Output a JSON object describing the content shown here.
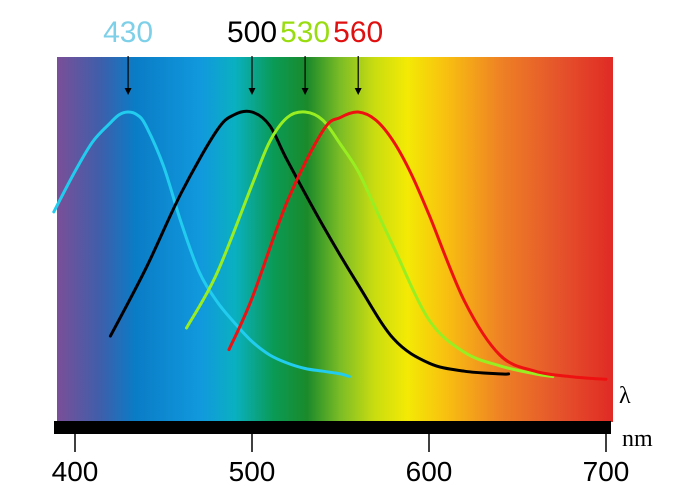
{
  "chart_data": {
    "type": "line",
    "title": "",
    "xlabel": "λ",
    "x_unit": "nm",
    "ylabel": "",
    "xlim": [
      393,
      710
    ],
    "ylim": [
      0,
      1
    ],
    "x_ticks": [
      400,
      500,
      600,
      700
    ],
    "x_tick_labels": [
      "400",
      "500",
      "600",
      "700"
    ],
    "background": "visible spectrum gradient (violet to red)",
    "grid": false,
    "legend": "none",
    "peak_labels": [
      {
        "text": "430",
        "value": 430,
        "color": "#7ed0e8"
      },
      {
        "text": "500",
        "value": 500,
        "color": "#000000"
      },
      {
        "text": "530",
        "value": 530,
        "color": "#99dd11"
      },
      {
        "text": "560",
        "value": 560,
        "color": "#e01010"
      }
    ],
    "series": [
      {
        "peak": 430,
        "color": "#22ccee",
        "x": [
          388,
          400,
          410,
          420,
          425,
          430,
          435,
          440,
          450,
          460,
          470,
          480,
          490,
          500,
          510,
          520,
          530,
          540,
          550,
          555
        ],
        "y": [
          0.63,
          0.78,
          0.89,
          0.96,
          0.99,
          1.0,
          0.99,
          0.95,
          0.8,
          0.59,
          0.41,
          0.3,
          0.22,
          0.15,
          0.1,
          0.07,
          0.05,
          0.04,
          0.03,
          0.02
        ]
      },
      {
        "peak": 500,
        "color": "#000000",
        "x": [
          420,
          440,
          460,
          480,
          490,
          500,
          510,
          520,
          540,
          560,
          580,
          600,
          620,
          640,
          645
        ],
        "y": [
          0.17,
          0.42,
          0.7,
          0.93,
          0.99,
          1.0,
          0.95,
          0.82,
          0.58,
          0.36,
          0.16,
          0.07,
          0.04,
          0.03,
          0.03
        ]
      },
      {
        "peak": 530,
        "color": "#99ee22",
        "x": [
          463,
          480,
          500,
          510,
          520,
          530,
          540,
          550,
          560,
          570,
          580,
          600,
          620,
          640,
          660,
          670
        ],
        "y": [
          0.2,
          0.4,
          0.73,
          0.89,
          0.98,
          1.0,
          0.97,
          0.88,
          0.78,
          0.64,
          0.5,
          0.23,
          0.11,
          0.06,
          0.03,
          0.02
        ]
      },
      {
        "peak": 560,
        "color": "#ee1111",
        "x": [
          487,
          500,
          520,
          540,
          550,
          560,
          570,
          580,
          590,
          600,
          620,
          640,
          660,
          680,
          700
        ],
        "y": [
          0.12,
          0.31,
          0.67,
          0.93,
          0.98,
          1.0,
          0.97,
          0.89,
          0.77,
          0.62,
          0.3,
          0.1,
          0.04,
          0.02,
          0.01
        ]
      }
    ]
  }
}
